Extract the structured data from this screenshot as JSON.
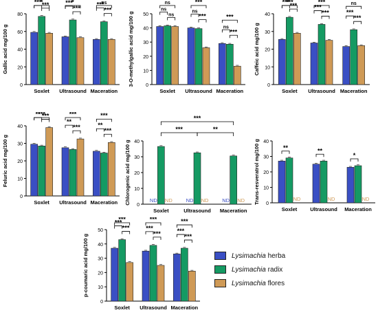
{
  "colors": {
    "herba": "#3a4fc4",
    "radix": "#159a63",
    "flores": "#cf9a56",
    "significance": "#000000",
    "nd_herba": "#3a4fc4",
    "nd_flores": "#cf9a56"
  },
  "legend": [
    {
      "genus": "Lysimachia",
      "part": "herba",
      "color": "#3a4fc4"
    },
    {
      "genus": "Lysimachia",
      "part": "radix",
      "color": "#159a63"
    },
    {
      "genus": "Lysimachia",
      "part": "flores",
      "color": "#cf9a56"
    }
  ],
  "chart_data": [
    {
      "id": "gallic",
      "type": "bar",
      "categories": [
        "Soxlet",
        "Ultrasound",
        "Maceration"
      ],
      "series": [
        {
          "name": "Lysimachia herba",
          "values": [
            59,
            54,
            51
          ]
        },
        {
          "name": "Lysimachia radix",
          "values": [
            77,
            73,
            71
          ]
        },
        {
          "name": "Lysimachia flores",
          "values": [
            58,
            53,
            51
          ]
        }
      ],
      "ylabel": "Gallic acid mg/100 g",
      "ylim": [
        0,
        80
      ],
      "yticks": [
        0,
        20,
        40,
        60,
        80
      ],
      "annotations": [
        {
          "cat": 0,
          "pairs": [
            [
              0,
              1,
              "***"
            ],
            [
              1,
              2,
              "***"
            ],
            [
              0,
              2,
              "*"
            ]
          ]
        },
        {
          "cat": 1,
          "pairs": [
            [
              0,
              1,
              "***"
            ],
            [
              1,
              2,
              "***"
            ],
            [
              0,
              2,
              "*"
            ]
          ]
        },
        {
          "cat": 2,
          "pairs": [
            [
              0,
              1,
              "***"
            ],
            [
              1,
              2,
              "***"
            ],
            [
              0,
              2,
              "ns"
            ]
          ]
        }
      ]
    },
    {
      "id": "omethyl",
      "type": "bar",
      "categories": [
        "Soxlet",
        "Ultrasound",
        "Maceration"
      ],
      "series": [
        {
          "name": "Lysimachia herba",
          "values": [
            41,
            40,
            29
          ]
        },
        {
          "name": "Lysimachia radix",
          "values": [
            41.5,
            39.5,
            28.5
          ]
        },
        {
          "name": "Lysimachia flores",
          "values": [
            41,
            26,
            13
          ]
        }
      ],
      "ylabel": "3-O-methylgallic acid mg/100 g",
      "ylim": [
        0,
        50
      ],
      "yticks": [
        0,
        10,
        20,
        30,
        40,
        50
      ],
      "annotations": [
        {
          "cat": 0,
          "pairs": [
            [
              0,
              1,
              "ns"
            ],
            [
              1,
              2,
              "ns"
            ],
            [
              0,
              2,
              "ns"
            ]
          ]
        },
        {
          "cat": 1,
          "pairs": [
            [
              0,
              1,
              "ns"
            ],
            [
              1,
              2,
              "***"
            ],
            [
              0,
              2,
              "***"
            ]
          ]
        },
        {
          "cat": 2,
          "pairs": [
            [
              0,
              1,
              "ns"
            ],
            [
              1,
              2,
              "***"
            ],
            [
              0,
              2,
              "***"
            ]
          ]
        }
      ]
    },
    {
      "id": "caffeic",
      "type": "bar",
      "categories": [
        "Soxlet",
        "Ultrasound",
        "Maceration"
      ],
      "series": [
        {
          "name": "Lysimachia herba",
          "values": [
            25.5,
            23.5,
            21.5
          ]
        },
        {
          "name": "Lysimachia radix",
          "values": [
            38,
            34,
            31
          ]
        },
        {
          "name": "Lysimachia flores",
          "values": [
            29,
            25,
            22
          ]
        }
      ],
      "ylabel": "Caffeic acid mg/100 g",
      "ylim": [
        0,
        40
      ],
      "yticks": [
        0,
        10,
        20,
        30,
        40
      ],
      "annotations": [
        {
          "cat": 0,
          "pairs": [
            [
              0,
              1,
              "***"
            ],
            [
              1,
              2,
              "***"
            ],
            [
              0,
              2,
              "***"
            ]
          ]
        },
        {
          "cat": 1,
          "pairs": [
            [
              0,
              1,
              "***"
            ],
            [
              1,
              2,
              "***"
            ],
            [
              0,
              2,
              "***"
            ]
          ]
        },
        {
          "cat": 2,
          "pairs": [
            [
              0,
              1,
              "***"
            ],
            [
              1,
              2,
              "***"
            ],
            [
              0,
              2,
              "ns"
            ]
          ]
        }
      ]
    },
    {
      "id": "ferulic",
      "type": "bar",
      "categories": [
        "Soxlet",
        "Ultrasound",
        "Maceration"
      ],
      "series": [
        {
          "name": "Lysimachia herba",
          "values": [
            29.5,
            27.5,
            25.5
          ]
        },
        {
          "name": "Lysimachia radix",
          "values": [
            28.5,
            26.5,
            24.5
          ]
        },
        {
          "name": "Lysimachia flores",
          "values": [
            39,
            32.5,
            30.5
          ]
        }
      ],
      "ylabel": "Feluric acid mg/100 g",
      "ylim": [
        0,
        40
      ],
      "yticks": [
        0,
        10,
        20,
        30,
        40
      ],
      "annotations": [
        {
          "cat": 0,
          "pairs": [
            [
              0,
              1,
              "**"
            ],
            [
              1,
              2,
              "***"
            ],
            [
              0,
              2,
              "***"
            ]
          ]
        },
        {
          "cat": 1,
          "pairs": [
            [
              0,
              1,
              "**"
            ],
            [
              1,
              2,
              "***"
            ],
            [
              0,
              2,
              "***"
            ]
          ]
        },
        {
          "cat": 2,
          "pairs": [
            [
              0,
              1,
              "**"
            ],
            [
              1,
              2,
              "***"
            ],
            [
              0,
              2,
              "***"
            ]
          ]
        }
      ]
    },
    {
      "id": "chlorogenic",
      "type": "bar",
      "categories": [
        "Soxlet",
        "Ultrasound",
        "Maceration"
      ],
      "series": [
        {
          "name": "Lysimachia herba",
          "values": [
            0,
            0,
            0
          ]
        },
        {
          "name": "Lysimachia radix",
          "values": [
            36.5,
            32.5,
            30.5
          ]
        },
        {
          "name": "Lysimachia flores",
          "values": [
            0,
            0,
            0
          ]
        }
      ],
      "nd_text": "ND",
      "nd_series": [
        0,
        2
      ],
      "ylabel": "Chlorogenic acid mg/100 g",
      "ylim": [
        0,
        40
      ],
      "yticks": [
        0,
        10,
        20,
        30,
        40
      ],
      "cross_annotations": [
        {
          "from": 0,
          "to": 2,
          "label": "***",
          "level": 0
        },
        {
          "from": 0,
          "to": 1,
          "label": "***",
          "level": 1
        },
        {
          "from": 1,
          "to": 2,
          "label": "**",
          "level": 1
        }
      ]
    },
    {
      "id": "resveratrol",
      "type": "bar",
      "categories": [
        "Soxlet",
        "Ultrasound",
        "Maceration"
      ],
      "series": [
        {
          "name": "Lysimachia herba",
          "values": [
            27,
            25,
            23
          ]
        },
        {
          "name": "Lysimachia radix",
          "values": [
            29,
            27,
            24
          ]
        },
        {
          "name": "Lysimachia flores",
          "values": [
            0,
            0,
            0
          ]
        }
      ],
      "nd_text": "ND",
      "nd_series": [
        2
      ],
      "ylabel": "Trans-resveratrol mg/100 g",
      "ylim": [
        0,
        40
      ],
      "yticks": [
        0,
        10,
        20,
        30,
        40
      ],
      "annotations": [
        {
          "cat": 0,
          "pairs": [
            [
              0,
              1,
              "**"
            ]
          ]
        },
        {
          "cat": 1,
          "pairs": [
            [
              0,
              1,
              "**"
            ]
          ]
        },
        {
          "cat": 2,
          "pairs": [
            [
              0,
              1,
              "*"
            ]
          ]
        }
      ]
    },
    {
      "id": "pcoumaric",
      "type": "bar",
      "categories": [
        "Soxlet",
        "Ultrasound",
        "Maceration"
      ],
      "series": [
        {
          "name": "Lysimachia herba",
          "values": [
            37,
            35,
            33
          ]
        },
        {
          "name": "Lysimachia radix",
          "values": [
            43,
            39,
            37
          ]
        },
        {
          "name": "Lysimachia flores",
          "values": [
            27,
            25,
            21
          ]
        }
      ],
      "ylabel": "p-coumaric acid mg/100 g",
      "ylim": [
        0,
        50
      ],
      "yticks": [
        0,
        10,
        20,
        30,
        40,
        50
      ],
      "annotations": [
        {
          "cat": 0,
          "pairs": [
            [
              0,
              1,
              "***"
            ],
            [
              1,
              2,
              "***"
            ],
            [
              0,
              2,
              "***"
            ]
          ]
        },
        {
          "cat": 1,
          "pairs": [
            [
              0,
              1,
              "***"
            ],
            [
              1,
              2,
              "***"
            ],
            [
              0,
              2,
              "***"
            ]
          ]
        },
        {
          "cat": 2,
          "pairs": [
            [
              0,
              1,
              "***"
            ],
            [
              1,
              2,
              "***"
            ],
            [
              0,
              2,
              "***"
            ]
          ]
        }
      ]
    }
  ]
}
